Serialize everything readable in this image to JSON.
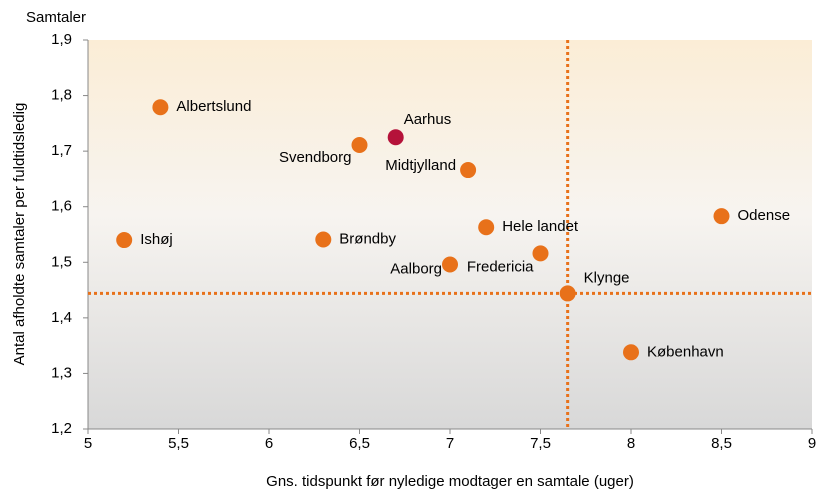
{
  "chart_data": {
    "type": "scatter",
    "y_axis_top_label": "Samtaler",
    "ylabel": "Antal afholdte samtaler per fuldtidsledig",
    "xlabel": "Gns. tidspunkt før nyledige modtager en samtale (uger)",
    "labels": [
      "Albertslund",
      "Aarhus",
      "Svendborg",
      "Midtjylland",
      "Odense",
      "Hele landet",
      "Ishøj",
      "Brøndby",
      "Fredericia",
      "Aalborg",
      "Klynge",
      "København"
    ],
    "x": [
      5.4,
      6.7,
      6.5,
      7.1,
      8.5,
      7.2,
      5.2,
      6.3,
      7.5,
      7.0,
      7.65,
      8.0
    ],
    "values": [
      1.779,
      1.725,
      1.711,
      1.666,
      1.583,
      1.563,
      1.54,
      1.541,
      1.516,
      1.496,
      1.444,
      1.338
    ],
    "colors": [
      "#e8711a",
      "#b5123a",
      "#e8711a",
      "#e8711a",
      "#e8711a",
      "#e8711a",
      "#e8711a",
      "#e8711a",
      "#e8711a",
      "#e8711a",
      "#e8711a",
      "#e8711a"
    ],
    "reference_lines": {
      "x": 7.65,
      "y": 1.444,
      "color": "#e8711a"
    },
    "xlim": [
      5,
      9
    ],
    "xticks": [
      5,
      {
        "value": 5.5,
        "label": "5,5"
      },
      6,
      {
        "value": 6.5,
        "label": "6,5"
      },
      7,
      {
        "value": 7.5,
        "label": "7,5"
      },
      8,
      {
        "value": 8.5,
        "label": "8,5"
      },
      9
    ],
    "ylim": [
      1.2,
      1.9
    ],
    "yticks": [
      {
        "value": 1.2,
        "label": "1,2"
      },
      {
        "value": 1.3,
        "label": "1,3"
      },
      {
        "value": 1.4,
        "label": "1,4"
      },
      {
        "value": 1.5,
        "label": "1,5"
      },
      {
        "value": 1.6,
        "label": "1,6"
      },
      {
        "value": 1.7,
        "label": "1,7"
      },
      {
        "value": 1.8,
        "label": "1,8"
      },
      {
        "value": 1.9,
        "label": "1,9"
      }
    ]
  }
}
